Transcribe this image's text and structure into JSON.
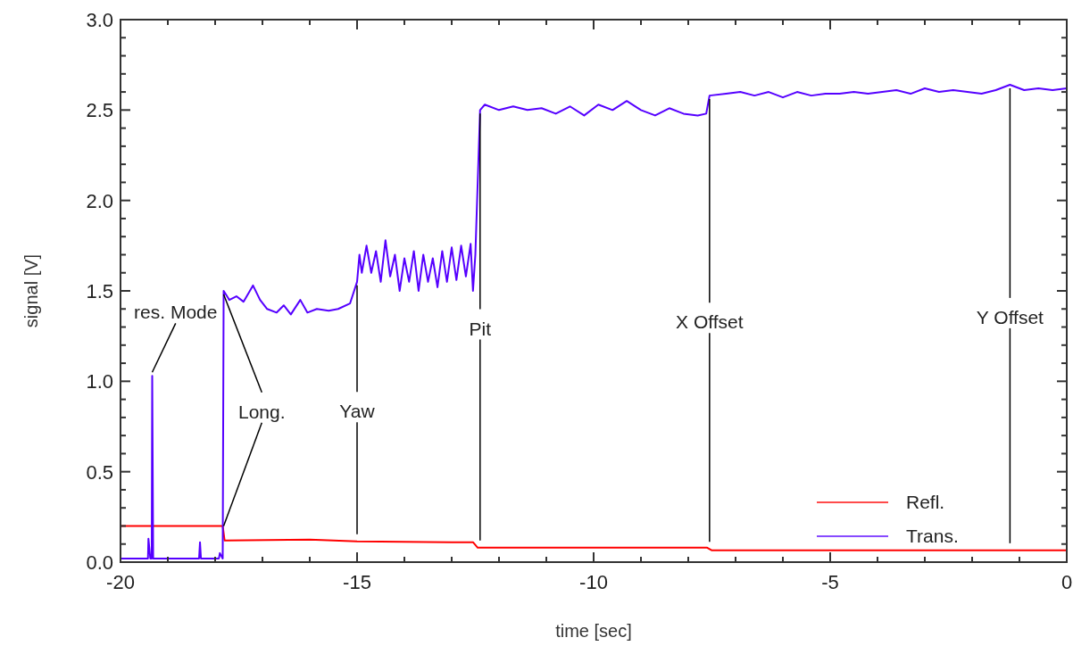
{
  "chart_data": {
    "type": "line",
    "xlabel": "time [sec]",
    "ylabel": "signal [V]",
    "xlim": [
      -20,
      0
    ],
    "ylim": [
      0,
      3
    ],
    "xticks": [
      -20,
      {
        "value": -19,
        "label": null
      },
      {
        "value": -18,
        "label": null
      },
      {
        "value": -17,
        "label": null
      },
      {
        "value": -16,
        "label": null
      },
      -15,
      {
        "value": -14,
        "label": null
      },
      {
        "value": -13,
        "label": null
      },
      {
        "value": -12,
        "label": null
      },
      {
        "value": -11,
        "label": null
      },
      -10,
      {
        "value": -9,
        "label": null
      },
      {
        "value": -8,
        "label": null
      },
      {
        "value": -7,
        "label": null
      },
      {
        "value": -6,
        "label": null
      },
      -5,
      {
        "value": -4,
        "label": null
      },
      {
        "value": -3,
        "label": null
      },
      {
        "value": -2,
        "label": null
      },
      {
        "value": -1,
        "label": null
      },
      0
    ],
    "yticks": [
      {
        "value": 0,
        "label": "0.0"
      },
      {
        "value": 0.1,
        "label": null
      },
      {
        "value": 0.2,
        "label": null
      },
      {
        "value": 0.3,
        "label": null
      },
      {
        "value": 0.4,
        "label": null
      },
      {
        "value": 0.5,
        "label": "0.5"
      },
      {
        "value": 0.6,
        "label": null
      },
      {
        "value": 0.7,
        "label": null
      },
      {
        "value": 0.8,
        "label": null
      },
      {
        "value": 0.9,
        "label": null
      },
      {
        "value": 1,
        "label": "1.0"
      },
      {
        "value": 1.1,
        "label": null
      },
      {
        "value": 1.2,
        "label": null
      },
      {
        "value": 1.3,
        "label": null
      },
      {
        "value": 1.4,
        "label": null
      },
      {
        "value": 1.5,
        "label": "1.5"
      },
      {
        "value": 1.6,
        "label": null
      },
      {
        "value": 1.7,
        "label": null
      },
      {
        "value": 1.8,
        "label": null
      },
      {
        "value": 1.9,
        "label": null
      },
      {
        "value": 2,
        "label": "2.0"
      },
      {
        "value": 2.1,
        "label": null
      },
      {
        "value": 2.2,
        "label": null
      },
      {
        "value": 2.3,
        "label": null
      },
      {
        "value": 2.4,
        "label": null
      },
      {
        "value": 2.5,
        "label": "2.5"
      },
      {
        "value": 2.6,
        "label": null
      },
      {
        "value": 2.7,
        "label": null
      },
      {
        "value": 2.8,
        "label": null
      },
      {
        "value": 2.9,
        "label": null
      },
      {
        "value": 3,
        "label": "3.0"
      }
    ],
    "grid": false,
    "legend": "bottom right",
    "line_style": "solid",
    "marker": "none",
    "series": [
      {
        "name": "Refl.",
        "color": "#ff0000",
        "x": [
          -20,
          -17.84,
          -17.8,
          -16,
          -15,
          -13,
          -12.55,
          -12.45,
          -7.6,
          -7.5,
          0
        ],
        "values": [
          0.2,
          0.2,
          0.12,
          0.125,
          0.115,
          0.11,
          0.11,
          0.08,
          0.08,
          0.065,
          0.065
        ]
      },
      {
        "name": "Trans.",
        "color": "#5500ff",
        "x": [
          -20,
          -19.42,
          -19.41,
          -19.37,
          -19.34,
          -19.33,
          -19.31,
          -18.34,
          -18.32,
          -18.3,
          -17.92,
          -17.9,
          -17.84,
          -17.82,
          -17.7,
          -17.55,
          -17.4,
          -17.2,
          -17.05,
          -16.9,
          -16.7,
          -16.55,
          -16.4,
          -16.2,
          -16.05,
          -15.85,
          -15.6,
          -15.4,
          -15.15,
          -15.0,
          -14.95,
          -14.9,
          -14.8,
          -14.7,
          -14.6,
          -14.5,
          -14.4,
          -14.3,
          -14.2,
          -14.1,
          -14.0,
          -13.9,
          -13.8,
          -13.7,
          -13.6,
          -13.5,
          -13.4,
          -13.3,
          -13.2,
          -13.1,
          -13.0,
          -12.9,
          -12.8,
          -12.7,
          -12.6,
          -12.55,
          -12.5,
          -12.4,
          -12.3,
          -12.0,
          -11.7,
          -11.4,
          -11.1,
          -10.8,
          -10.5,
          -10.2,
          -9.9,
          -9.6,
          -9.3,
          -9.0,
          -8.7,
          -8.4,
          -8.1,
          -7.8,
          -7.62,
          -7.55,
          -7.2,
          -6.9,
          -6.6,
          -6.3,
          -6.0,
          -5.7,
          -5.4,
          -5.1,
          -4.8,
          -4.5,
          -4.2,
          -3.9,
          -3.6,
          -3.3,
          -3.0,
          -2.7,
          -2.4,
          -2.1,
          -1.8,
          -1.5,
          -1.2,
          -0.9,
          -0.6,
          -0.3,
          0
        ],
        "values": [
          0.02,
          0.02,
          0.13,
          0.02,
          0.02,
          1.03,
          0.02,
          0.02,
          0.11,
          0.02,
          0.02,
          0.05,
          0.02,
          1.5,
          1.45,
          1.47,
          1.44,
          1.53,
          1.45,
          1.4,
          1.38,
          1.42,
          1.37,
          1.45,
          1.38,
          1.4,
          1.39,
          1.4,
          1.43,
          1.55,
          1.7,
          1.6,
          1.75,
          1.6,
          1.72,
          1.55,
          1.78,
          1.58,
          1.7,
          1.5,
          1.68,
          1.55,
          1.72,
          1.5,
          1.7,
          1.55,
          1.68,
          1.52,
          1.72,
          1.55,
          1.74,
          1.56,
          1.75,
          1.58,
          1.76,
          1.5,
          1.7,
          2.5,
          2.53,
          2.5,
          2.52,
          2.5,
          2.51,
          2.48,
          2.52,
          2.47,
          2.53,
          2.5,
          2.55,
          2.5,
          2.47,
          2.51,
          2.48,
          2.47,
          2.48,
          2.58,
          2.59,
          2.6,
          2.58,
          2.6,
          2.57,
          2.6,
          2.58,
          2.59,
          2.59,
          2.6,
          2.59,
          2.6,
          2.61,
          2.59,
          2.62,
          2.6,
          2.61,
          2.6,
          2.59,
          2.61,
          2.64,
          2.61,
          2.62,
          2.61,
          2.62
        ]
      }
    ],
    "annotations": [
      {
        "text": "res. Mode",
        "x": -19.33,
        "y": 1.03
      },
      {
        "text": "Long.",
        "x": -17.82,
        "y": 1.5
      },
      {
        "text": "Yaw",
        "x": -15.0,
        "y": 1.55
      },
      {
        "text": "Pit",
        "x": -12.4,
        "y": 2.5
      },
      {
        "text": "X Offset",
        "x": -7.55,
        "y": 2.58
      },
      {
        "text": "Y Offset",
        "x": -1.2,
        "y": 2.64
      }
    ]
  }
}
